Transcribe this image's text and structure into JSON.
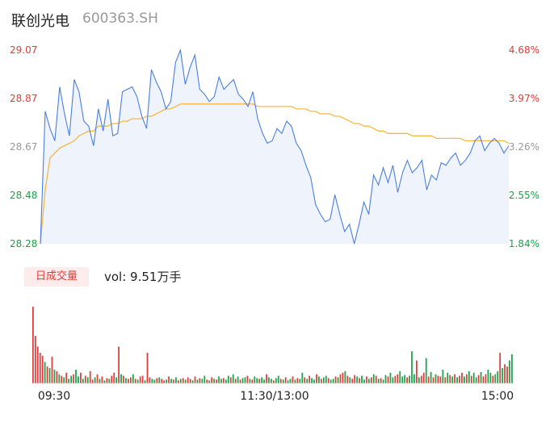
{
  "header": {
    "name": "联创光电",
    "code": "600363.SH"
  },
  "volume": {
    "tag": "日成交量",
    "label": "vol: 9.51万手"
  },
  "colors": {
    "up": "#e23b3b",
    "down": "#1aa34a",
    "neutral": "#999999",
    "price_line": "#4a7fe0",
    "avg_line": "#f5b942"
  },
  "chart_data": [
    {
      "type": "line",
      "title": "",
      "y_left_ticks": [
        "29.07",
        "28.87",
        "28.67",
        "28.48",
        "28.28"
      ],
      "y_right_ticks": [
        "4.68%",
        "3.97%",
        "3.26%",
        "2.55%",
        "1.84%"
      ],
      "ylim": [
        28.28,
        29.07
      ],
      "x_ticks": [
        "09:30",
        "11:30/13:00",
        "15:00"
      ],
      "grid": false,
      "series": [
        {
          "values": [
            28.28,
            28.82,
            28.75,
            28.7,
            28.92,
            28.81,
            28.72,
            28.95,
            28.9,
            28.78,
            28.76,
            28.68,
            28.83,
            28.74,
            28.87,
            28.72,
            28.73,
            28.9,
            28.91,
            28.92,
            28.88,
            28.8,
            28.75,
            28.99,
            28.94,
            28.9,
            28.83,
            28.86,
            29.02,
            29.07,
            28.93,
            29.0,
            29.05,
            28.91,
            28.89,
            28.86,
            28.88,
            28.96,
            28.91,
            28.93,
            28.95,
            28.89,
            28.87,
            28.84,
            28.9,
            28.79,
            28.73,
            28.69,
            28.7,
            28.75,
            28.73,
            28.78,
            28.76,
            28.69,
            28.66,
            28.6,
            28.55,
            28.44,
            28.4,
            28.37,
            28.38,
            28.48,
            28.4,
            28.33,
            28.36,
            28.28,
            28.36,
            28.45,
            28.4,
            28.56,
            28.52,
            28.59,
            28.53,
            28.6,
            28.49,
            28.57,
            28.62,
            28.57,
            28.59,
            28.62,
            28.5,
            28.56,
            28.54,
            28.61,
            28.6,
            28.63,
            28.65,
            28.6,
            28.62,
            28.65,
            28.7,
            28.72,
            28.66,
            28.69,
            28.71,
            28.69,
            28.65,
            28.68
          ],
          "avg_values": [
            28.28,
            28.5,
            28.63,
            28.65,
            28.67,
            28.68,
            28.69,
            28.7,
            28.72,
            28.73,
            28.74,
            28.74,
            28.76,
            28.76,
            28.76,
            28.77,
            28.77,
            28.78,
            28.78,
            28.79,
            28.79,
            28.79,
            28.8,
            28.8,
            28.81,
            28.82,
            28.83,
            28.83,
            28.84,
            28.85,
            28.85,
            28.85,
            28.85,
            28.85,
            28.85,
            28.85,
            28.85,
            28.85,
            28.85,
            28.85,
            28.85,
            28.85,
            28.85,
            28.85,
            28.85,
            28.84,
            28.84,
            28.84,
            28.84,
            28.84,
            28.84,
            28.84,
            28.84,
            28.83,
            28.83,
            28.83,
            28.82,
            28.82,
            28.81,
            28.81,
            28.81,
            28.8,
            28.8,
            28.79,
            28.78,
            28.77,
            28.77,
            28.76,
            28.76,
            28.75,
            28.74,
            28.74,
            28.73,
            28.73,
            28.73,
            28.73,
            28.73,
            28.72,
            28.72,
            28.72,
            28.72,
            28.72,
            28.71,
            28.71,
            28.71,
            28.71,
            28.71,
            28.71,
            28.7,
            28.7,
            28.7,
            28.7,
            28.7,
            28.7,
            28.7,
            28.7,
            28.7,
            28.69
          ]
        }
      ]
    },
    {
      "type": "bar",
      "title": "日成交量",
      "ylim": [
        0,
        100
      ],
      "values": [
        100,
        62,
        48,
        40,
        36,
        28,
        22,
        20,
        35,
        18,
        16,
        12,
        10,
        8,
        14,
        6,
        10,
        12,
        18,
        9,
        14,
        6,
        10,
        8,
        16,
        5,
        8,
        12,
        6,
        9,
        4,
        7,
        6,
        10,
        14,
        8,
        48,
        12,
        10,
        7,
        6,
        8,
        12,
        6,
        5,
        9,
        10,
        4,
        40,
        8,
        6,
        5,
        7,
        8,
        6,
        4,
        5,
        9,
        6,
        5,
        8,
        4,
        6,
        7,
        5,
        8,
        6,
        4,
        9,
        5,
        7,
        6,
        10,
        5,
        4,
        8,
        6,
        5,
        9,
        6,
        7,
        5,
        10,
        8,
        12,
        6,
        9,
        5,
        7,
        8,
        10,
        6,
        5,
        9,
        7,
        6,
        8,
        5,
        12,
        8,
        6,
        4,
        7,
        10,
        6,
        5,
        8,
        4,
        6,
        9,
        5,
        7,
        6,
        14,
        8,
        6,
        10,
        7,
        5,
        12,
        9,
        6,
        8,
        10,
        7,
        5,
        6,
        9,
        8,
        12,
        14,
        16,
        10,
        8,
        6,
        11,
        9,
        7,
        10,
        5,
        9,
        6,
        8,
        12,
        10,
        6,
        7,
        5,
        11,
        9,
        14,
        8,
        10,
        12,
        16,
        9,
        11,
        8,
        10,
        42,
        12,
        30,
        8,
        10,
        14,
        33,
        9,
        15,
        8,
        12,
        10,
        9,
        18,
        8,
        14,
        11,
        9,
        12,
        8,
        10,
        14,
        9,
        12,
        16,
        10,
        14,
        8,
        11,
        15,
        9,
        12,
        18,
        14,
        10,
        12,
        16,
        40,
        20,
        25,
        22,
        30,
        38
      ],
      "up": [
        1,
        1,
        1,
        1,
        1,
        0,
        1,
        0,
        1,
        0,
        1,
        0,
        1,
        0,
        1,
        0,
        0,
        1,
        0,
        0,
        1,
        0,
        1,
        0,
        1,
        1,
        0,
        1,
        0,
        1,
        0,
        1,
        0,
        1,
        1,
        0,
        1,
        0,
        1,
        0,
        1,
        1,
        0,
        1,
        0,
        1,
        1,
        0,
        1,
        1,
        0,
        0,
        1,
        0,
        1,
        1,
        0,
        1,
        0,
        1,
        0,
        1,
        0,
        1,
        0,
        1,
        1,
        0,
        1,
        0,
        1,
        0,
        0,
        1,
        0,
        1,
        0,
        1,
        0,
        0,
        1,
        0,
        0,
        1,
        0,
        1,
        0,
        1,
        0,
        0,
        1,
        0,
        1,
        0,
        0,
        1,
        0,
        0,
        1,
        0,
        0,
        1,
        0,
        0,
        1,
        0,
        1,
        0,
        0,
        1,
        0,
        1,
        0,
        0,
        1,
        0,
        1,
        0,
        0,
        1,
        0,
        1,
        0,
        0,
        1,
        0,
        0,
        1,
        0,
        1,
        1,
        0,
        1,
        0,
        1,
        1,
        0,
        1,
        0,
        0,
        1,
        0,
        1,
        0,
        1,
        0,
        1,
        0,
        0,
        1,
        0,
        0,
        1,
        1,
        0,
        0,
        0,
        1,
        0,
        0,
        0,
        1,
        0,
        1,
        1,
        0,
        1,
        0,
        1,
        0,
        1,
        1,
        0,
        1,
        0,
        1,
        0,
        1,
        0,
        1,
        1,
        0,
        1,
        0,
        1,
        0,
        0,
        1,
        0,
        1,
        1,
        0,
        0,
        1,
        0,
        0,
        1,
        0,
        1,
        1,
        0,
        0
      ]
    }
  ]
}
